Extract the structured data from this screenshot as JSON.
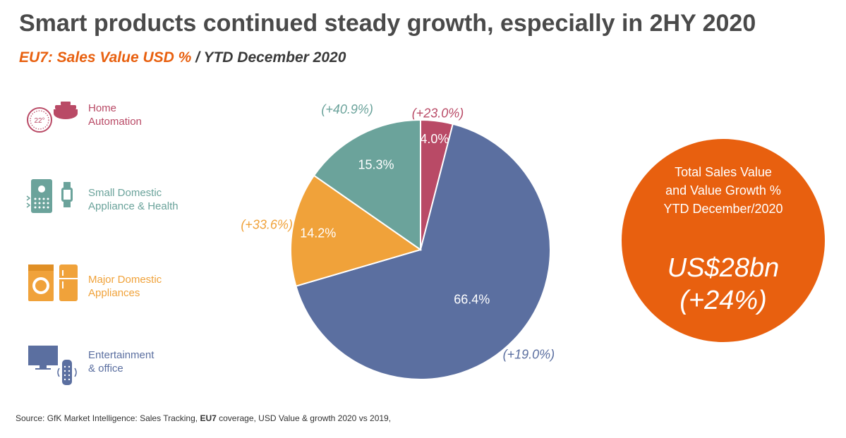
{
  "header": {
    "title": "Smart products continued steady growth, especially in 2HY 2020",
    "subtitle_main": "EU7: Sales Value USD %",
    "subtitle_rest": " / YTD December 2020"
  },
  "colors": {
    "title": "#4a4a4a",
    "accent": "#e8600f",
    "home_automation": "#b94a66",
    "small_domestic": "#6ba39b",
    "major_domestic": "#f0a23a",
    "entertainment": "#5b6fa0"
  },
  "legend": [
    {
      "label": "Home\nAutomation",
      "icon": "smart-home-thermostat-icon",
      "color": "#b94a66"
    },
    {
      "label": "Small Domestic\nAppliance & Health",
      "icon": "air-purifier-smartwatch-icon",
      "color": "#6ba39b"
    },
    {
      "label": "Major Domestic\nAppliances",
      "icon": "washing-machine-fridge-icon",
      "color": "#f0a23a"
    },
    {
      "label": "Entertainment\n& office",
      "icon": "tv-smart-speaker-icon",
      "color": "#5b6fa0"
    }
  ],
  "chart_data": {
    "type": "pie",
    "title": "",
    "slices": [
      {
        "label": "Home Automation",
        "value": 4.0,
        "value_label": "4.0%",
        "growth_label": "(+23.0%)",
        "color": "#b94a66"
      },
      {
        "label": "Entertainment & office",
        "value": 66.4,
        "value_label": "66.4%",
        "growth_label": "(+19.0%)",
        "color": "#5b6fa0"
      },
      {
        "label": "Major Domestic Appliances",
        "value": 14.2,
        "value_label": "14.2%",
        "growth_label": "(+33.6%)",
        "color": "#f0a23a"
      },
      {
        "label": "Small Domestic Appliance & Health",
        "value": 15.3,
        "value_label": "15.3%",
        "growth_label": "(+40.9%)",
        "color": "#6ba39b"
      }
    ]
  },
  "summary": {
    "caption": "Total Sales Value\nand Value Growth %\nYTD December/2020",
    "value": "US$28bn",
    "growth": "(+24%)"
  },
  "footer": {
    "source_prefix": "Source:  GfK Market Intelligence: Sales Tracking, ",
    "source_bold": "EU7",
    "source_suffix": " coverage,  USD Value  &  growth 2020 vs 2019,"
  }
}
